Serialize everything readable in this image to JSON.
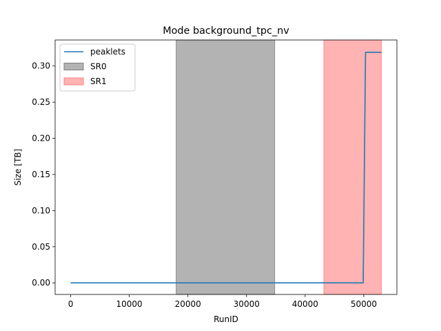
{
  "chart_data": {
    "type": "line",
    "title": "Mode background_tpc_nv",
    "xlabel": "RunID",
    "ylabel": "Size [TB]",
    "xlim": [
      -2650,
      55650
    ],
    "ylim": [
      -0.016,
      0.336
    ],
    "xticks": [
      0,
      10000,
      20000,
      30000,
      40000,
      50000
    ],
    "yticks": [
      0.0,
      0.05,
      0.1,
      0.15,
      0.2,
      0.25,
      0.3
    ],
    "xtick_labels": [
      "0",
      "10000",
      "20000",
      "30000",
      "40000",
      "50000"
    ],
    "ytick_labels": [
      "0.00",
      "0.05",
      "0.10",
      "0.15",
      "0.20",
      "0.25",
      "0.30"
    ],
    "grid": false,
    "legend_position": "top-left",
    "series": [
      {
        "name": "peaklets",
        "color": "#1f77b4",
        "x": [
          0,
          49900,
          50300,
          53000
        ],
        "y": [
          0.0,
          0.0,
          0.319,
          0.319
        ]
      }
    ],
    "bands": [
      {
        "name": "SR0",
        "x_start": 18000,
        "x_end": 34800,
        "color": "#808080",
        "opacity": 0.6
      },
      {
        "name": "SR1",
        "x_start": 43200,
        "x_end": 53000,
        "color": "#ff8080",
        "opacity": 0.6
      }
    ]
  }
}
